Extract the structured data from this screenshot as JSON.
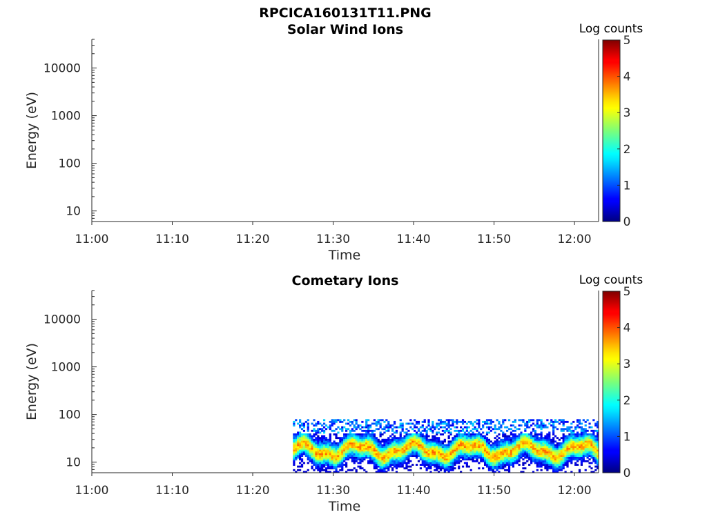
{
  "figure_title": "RPCICA160131T11.PNG",
  "chart_data": [
    {
      "type": "heatmap",
      "title": "Solar Wind Ions",
      "xlabel": "Time",
      "ylabel": "Energy (eV)",
      "x_ticks": [
        "11:00",
        "11:10",
        "11:20",
        "11:30",
        "11:40",
        "11:50",
        "12:00"
      ],
      "y_ticks": [
        "10",
        "100",
        "1000",
        "10000"
      ],
      "y_scale": "log",
      "xlim": [
        "11:00",
        "12:03"
      ],
      "ylim": [
        6,
        40000
      ],
      "colorbar": {
        "label": "Log counts",
        "ticks": [
          "0",
          "1",
          "2",
          "3",
          "4",
          "5"
        ],
        "range": [
          0,
          5
        ],
        "colormap": "jet"
      },
      "data": "empty"
    },
    {
      "type": "heatmap",
      "title": "Cometary Ions",
      "xlabel": "Time",
      "ylabel": "Energy (eV)",
      "x_ticks": [
        "11:00",
        "11:10",
        "11:20",
        "11:30",
        "11:40",
        "11:50",
        "12:00"
      ],
      "y_ticks": [
        "10",
        "100",
        "1000",
        "10000"
      ],
      "y_scale": "log",
      "xlim": [
        "11:00",
        "12:03"
      ],
      "ylim": [
        6,
        40000
      ],
      "colorbar": {
        "label": "Log counts",
        "ticks": [
          "0",
          "1",
          "2",
          "3",
          "4",
          "5"
        ],
        "range": [
          0,
          5
        ],
        "colormap": "jet"
      },
      "data_start": "11:25",
      "data_end": "12:03",
      "energy_range_ev": [
        6,
        80
      ],
      "peak_energy_ev": 18,
      "peak_log_counts": 3.5
    }
  ]
}
